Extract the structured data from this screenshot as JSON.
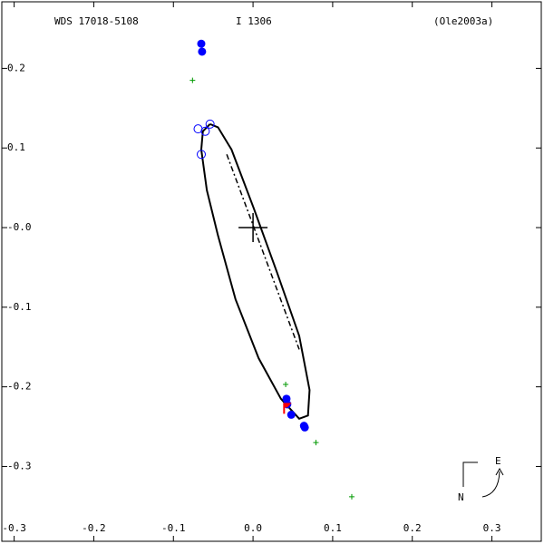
{
  "chart_data": {
    "type": "orbit",
    "header": [
      "WDS 17018-5108",
      "I  1306",
      "(Ole2003a)"
    ],
    "xlim": [
      -0.3155,
      0.362
    ],
    "ylim": [
      -0.394,
      0.2836
    ],
    "xticks": [
      -0.3,
      -0.2,
      -0.1,
      {
        "value": 0,
        "label": "0.0"
      },
      0.1,
      0.2,
      0.3
    ],
    "yticks": [
      -0.3,
      -0.2,
      -0.1,
      {
        "value": 0,
        "label": "-0.0"
      },
      0.1,
      0.2
    ],
    "compass": [
      "N",
      "E"
    ],
    "series": [
      {
        "marker": "line",
        "color": "#000000",
        "x": [
          -0.054,
          -0.063,
          -0.065,
          -0.058,
          -0.044,
          -0.022,
          0.007,
          0.035,
          0.058,
          0.069,
          0.071,
          0.058,
          0.03,
          0.001,
          -0.027,
          -0.044,
          -0.054
        ],
        "y": [
          0.13,
          0.121,
          0.098,
          0.047,
          -0.01,
          -0.09,
          -0.164,
          -0.215,
          -0.24,
          -0.236,
          -0.204,
          -0.136,
          -0.056,
          0.024,
          0.098,
          0.126,
          0.13
        ]
      },
      {
        "marker": "dash-dot",
        "color": "#000000",
        "x": [
          -0.033,
          0.058
        ],
        "y": [
          0.092,
          -0.153
        ]
      },
      {
        "marker": "filled-circle",
        "color": "#0000ff",
        "x": [
          -0.065,
          -0.064,
          0.042,
          0.043,
          0.048,
          0.064,
          0.065
        ],
        "y": [
          0.231,
          0.221,
          -0.215,
          -0.222,
          -0.235,
          -0.249,
          -0.251
        ]
      },
      {
        "marker": "open-circle",
        "color": "#0000ff",
        "x": [
          -0.069,
          -0.06,
          -0.054,
          -0.065
        ],
        "y": [
          0.124,
          0.121,
          0.13,
          0.092
        ]
      },
      {
        "marker": "plus",
        "color": "#009900",
        "x": [
          -0.076,
          0.124,
          0.079,
          0.041
        ],
        "y": [
          0.185,
          -0.338,
          -0.27,
          -0.197
        ]
      },
      {
        "marker": "flag",
        "color": "#ff0000",
        "x": [
          0.039
        ],
        "y": [
          -0.227
        ]
      }
    ]
  }
}
